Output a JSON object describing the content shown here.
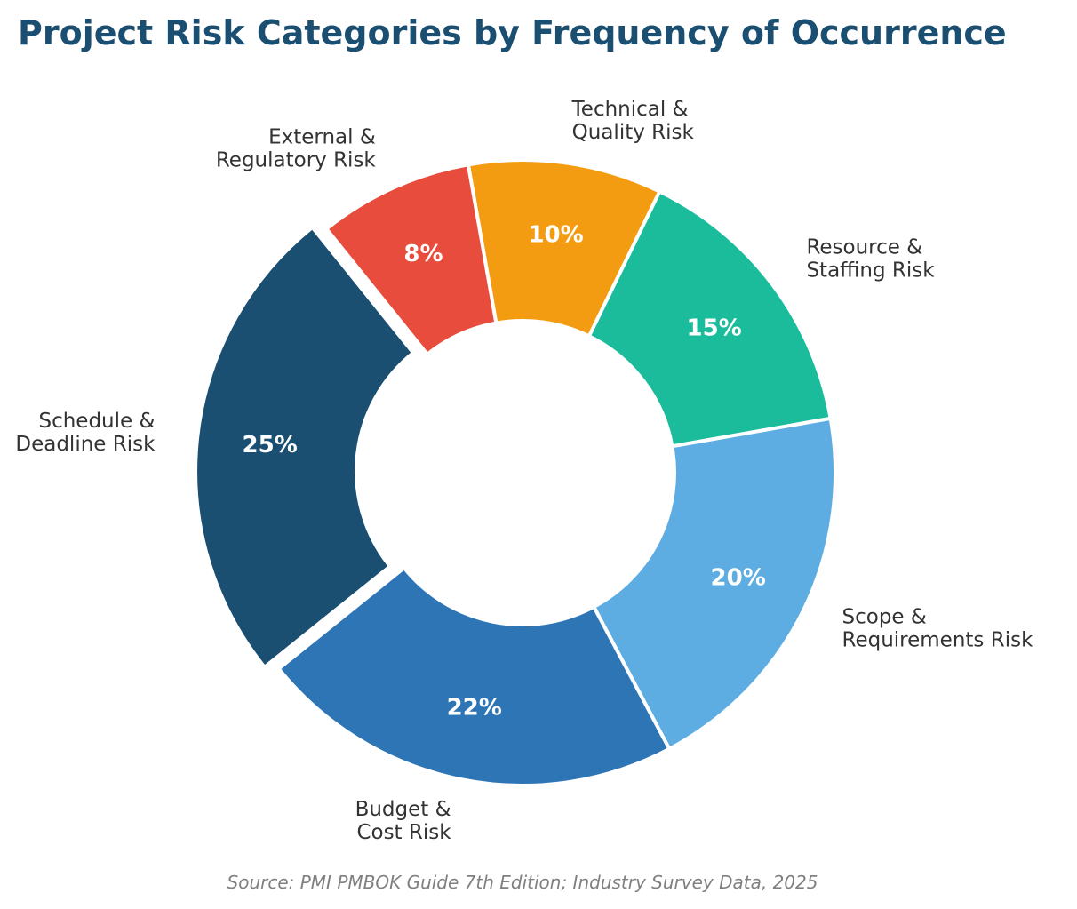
{
  "chart_data": {
    "type": "pie",
    "variant": "donut",
    "title": "Project Risk Categories by Frequency of Occurrence",
    "title_color": "#1b4f72",
    "source": "Source: PMI PMBOK Guide 7th Edition; Industry Survey Data, 2025",
    "label_format": "{value}%",
    "slices": [
      {
        "category": "Technical & Quality Risk",
        "label_lines": [
          "Technical &",
          "Quality Risk"
        ],
        "value": 10,
        "color": "#f39c12"
      },
      {
        "category": "Resource & Staffing Risk",
        "label_lines": [
          "Resource &",
          "Staffing Risk"
        ],
        "value": 15,
        "color": "#1abc9c"
      },
      {
        "category": "Scope & Requirements Risk",
        "label_lines": [
          "Scope &",
          "Requirements Risk"
        ],
        "value": 20,
        "color": "#5dade2"
      },
      {
        "category": "Budget & Cost Risk",
        "label_lines": [
          "Budget &",
          "Cost Risk"
        ],
        "value": 22,
        "color": "#2e75b6"
      },
      {
        "category": "Schedule & Deadline Risk",
        "label_lines": [
          "Schedule &",
          "Deadline Risk"
        ],
        "value": 25,
        "color": "#1b4f72"
      },
      {
        "category": "External & Regulatory Risk",
        "label_lines": [
          "External &",
          "Regulatory Risk"
        ],
        "value": 8,
        "color": "#e74c3c"
      }
    ],
    "highlighted": "Schedule & Deadline Risk"
  }
}
